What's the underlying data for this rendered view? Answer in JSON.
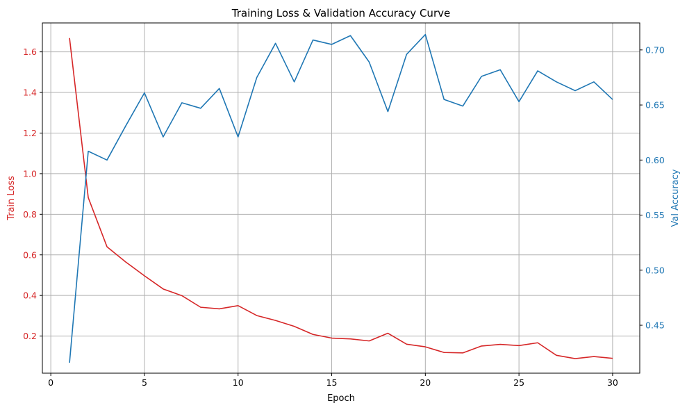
{
  "chart_data": {
    "type": "line",
    "title": "Training Loss & Validation Accuracy Curve",
    "xlabel": "Epoch",
    "xlim": [
      -0.45,
      31.45
    ],
    "x_ticks": [
      0,
      5,
      10,
      15,
      20,
      25,
      30
    ],
    "x": [
      1,
      2,
      3,
      4,
      5,
      6,
      7,
      8,
      9,
      10,
      11,
      12,
      13,
      14,
      15,
      16,
      17,
      18,
      19,
      20,
      21,
      22,
      23,
      24,
      25,
      26,
      27,
      28,
      29,
      30
    ],
    "grid": true,
    "left_axis": {
      "label": "Train Loss",
      "color": "#d62728",
      "ylim": [
        0.0172,
        1.7425
      ],
      "ticks": [
        0.2,
        0.4,
        0.6,
        0.8,
        1.0,
        1.2,
        1.4,
        1.6
      ]
    },
    "right_axis": {
      "label": "Val Accuracy",
      "color": "#1f77b4",
      "ylim": [
        0.4065,
        0.7245
      ],
      "ticks": [
        0.45,
        0.5,
        0.55,
        0.6,
        0.65,
        0.7
      ]
    },
    "series": [
      {
        "axis": "left",
        "color": "#d62728",
        "values": [
          1.668,
          0.882,
          0.64,
          0.565,
          0.497,
          0.432,
          0.399,
          0.342,
          0.334,
          0.35,
          0.301,
          0.277,
          0.248,
          0.208,
          0.19,
          0.186,
          0.176,
          0.214,
          0.16,
          0.147,
          0.119,
          0.117,
          0.151,
          0.159,
          0.153,
          0.167,
          0.105,
          0.089,
          0.099,
          0.09
        ]
      },
      {
        "axis": "right",
        "color": "#1f77b4",
        "values": [
          0.416,
          0.608,
          0.6,
          0.631,
          0.661,
          0.621,
          0.652,
          0.647,
          0.665,
          0.621,
          0.675,
          0.706,
          0.671,
          0.709,
          0.705,
          0.713,
          0.689,
          0.644,
          0.696,
          0.714,
          0.655,
          0.649,
          0.676,
          0.682,
          0.653,
          0.681,
          0.671,
          0.663,
          0.671,
          0.655
        ]
      }
    ]
  }
}
